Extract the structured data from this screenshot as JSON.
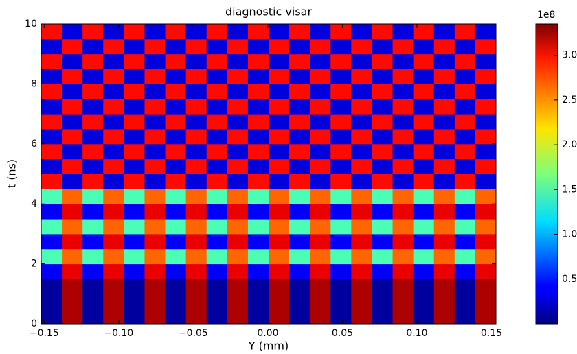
{
  "chart_data": {
    "type": "heatmap",
    "title": "diagnostic visar",
    "x_label": "Y (mm)",
    "y_label": "t (ns)",
    "xlim": [
      -0.152,
      0.153
    ],
    "ylim": [
      0,
      10
    ],
    "xticks": [
      {
        "value": -0.15,
        "label": "−0.15"
      },
      {
        "value": -0.1,
        "label": "−0.10"
      },
      {
        "value": -0.05,
        "label": "−0.05"
      },
      {
        "value": 0,
        "label": "0.00"
      },
      0.05,
      {
        "value": 0.1,
        "label": "0.10"
      },
      0.15
    ],
    "yticks": [
      0,
      2,
      4,
      6,
      8,
      10
    ],
    "colorbar_offset": "1e8",
    "clim": [
      0,
      3.35
    ],
    "colorbar_ticks": [
      0.5,
      {
        "value": 1,
        "label": "1.0"
      },
      1.5,
      {
        "value": 2,
        "label": "2.0"
      },
      2.5,
      {
        "value": 3,
        "label": "3.0"
      }
    ],
    "colormap": "jet",
    "z": [
      [
        0.1,
        3.2,
        0.1,
        3.2,
        0.1,
        3.2,
        0.1,
        3.2,
        0.1,
        3.2,
        0.1,
        3.2,
        0.1,
        3.2,
        0.1,
        3.2,
        0.1,
        3.2,
        0.1,
        3.2,
        0.1,
        3.2
      ],
      [
        0.1,
        3.2,
        0.1,
        3.2,
        0.1,
        3.2,
        0.1,
        3.2,
        0.1,
        3.2,
        0.1,
        3.2,
        0.1,
        3.2,
        0.1,
        3.2,
        0.1,
        3.2,
        0.1,
        3.2,
        0.1,
        3.2
      ],
      [
        0.1,
        3.2,
        0.1,
        3.2,
        0.1,
        3.2,
        0.1,
        3.2,
        0.1,
        3.2,
        0.1,
        3.2,
        0.1,
        3.2,
        0.1,
        3.2,
        0.1,
        3.2,
        0.1,
        3.2,
        0.1,
        3.2
      ],
      [
        0.4,
        3.0,
        0.4,
        3.0,
        0.4,
        3.0,
        0.4,
        3.0,
        0.4,
        3.0,
        0.4,
        3.0,
        0.4,
        3.0,
        0.4,
        3.0,
        0.4,
        3.0,
        0.4,
        3.0,
        0.4,
        3.0
      ],
      [
        1.5,
        2.6,
        1.5,
        2.6,
        1.5,
        2.6,
        1.5,
        2.6,
        1.5,
        2.6,
        1.5,
        2.6,
        1.5,
        2.6,
        1.5,
        2.6,
        1.5,
        2.6,
        1.5,
        2.6,
        1.5,
        2.6
      ],
      [
        0.4,
        3.0,
        0.4,
        3.0,
        0.4,
        3.0,
        0.4,
        3.0,
        0.4,
        3.0,
        0.4,
        3.0,
        0.4,
        3.0,
        0.4,
        3.0,
        0.4,
        3.0,
        0.4,
        3.0,
        0.4,
        3.0
      ],
      [
        1.5,
        2.6,
        1.5,
        2.6,
        1.5,
        2.6,
        1.5,
        2.6,
        1.5,
        2.6,
        1.5,
        2.6,
        1.5,
        2.6,
        1.5,
        2.6,
        1.5,
        2.6,
        1.5,
        2.6,
        1.5,
        2.6
      ],
      [
        0.4,
        3.0,
        0.4,
        3.0,
        0.4,
        3.0,
        0.4,
        3.0,
        0.4,
        3.0,
        0.4,
        3.0,
        0.4,
        3.0,
        0.4,
        3.0,
        0.4,
        3.0,
        0.4,
        3.0,
        0.4,
        3.0
      ],
      [
        1.5,
        2.6,
        1.5,
        2.6,
        1.5,
        2.6,
        1.5,
        2.6,
        1.5,
        2.6,
        1.5,
        2.6,
        1.5,
        2.6,
        1.5,
        2.6,
        1.5,
        2.6,
        1.5,
        2.6,
        1.5,
        2.6
      ],
      [
        2.9,
        0.3,
        2.9,
        0.3,
        2.9,
        0.3,
        2.9,
        0.3,
        2.9,
        0.3,
        2.9,
        0.3,
        2.9,
        0.3,
        2.9,
        0.3,
        2.9,
        0.3,
        2.9,
        0.3,
        2.9,
        0.3
      ],
      [
        0.3,
        2.9,
        0.3,
        2.9,
        0.3,
        2.9,
        0.3,
        2.9,
        0.3,
        2.9,
        0.3,
        2.9,
        0.3,
        2.9,
        0.3,
        2.9,
        0.3,
        2.9,
        0.3,
        2.9,
        0.3,
        2.9
      ],
      [
        2.9,
        0.3,
        2.9,
        0.3,
        2.9,
        0.3,
        2.9,
        0.3,
        2.9,
        0.3,
        2.9,
        0.3,
        2.9,
        0.3,
        2.9,
        0.3,
        2.9,
        0.3,
        2.9,
        0.3,
        2.9,
        0.3
      ],
      [
        0.3,
        2.9,
        0.3,
        2.9,
        0.3,
        2.9,
        0.3,
        2.9,
        0.3,
        2.9,
        0.3,
        2.9,
        0.3,
        2.9,
        0.3,
        2.9,
        0.3,
        2.9,
        0.3,
        2.9,
        0.3,
        2.9
      ],
      [
        2.9,
        0.3,
        2.9,
        0.3,
        2.9,
        0.3,
        2.9,
        0.3,
        2.9,
        0.3,
        2.9,
        0.3,
        2.9,
        0.3,
        2.9,
        0.3,
        2.9,
        0.3,
        2.9,
        0.3,
        2.9,
        0.3
      ],
      [
        0.3,
        2.9,
        0.3,
        2.9,
        0.3,
        2.9,
        0.3,
        2.9,
        0.3,
        2.9,
        0.3,
        2.9,
        0.3,
        2.9,
        0.3,
        2.9,
        0.3,
        2.9,
        0.3,
        2.9,
        0.3,
        2.9
      ],
      [
        2.9,
        0.3,
        2.9,
        0.3,
        2.9,
        0.3,
        2.9,
        0.3,
        2.9,
        0.3,
        2.9,
        0.3,
        2.9,
        0.3,
        2.9,
        0.3,
        2.9,
        0.3,
        2.9,
        0.3,
        2.9,
        0.3
      ],
      [
        0.3,
        2.9,
        0.3,
        2.9,
        0.3,
        2.9,
        0.3,
        2.9,
        0.3,
        2.9,
        0.3,
        2.9,
        0.3,
        2.9,
        0.3,
        2.9,
        0.3,
        2.9,
        0.3,
        2.9,
        0.3,
        2.9
      ],
      [
        2.9,
        0.3,
        2.9,
        0.3,
        2.9,
        0.3,
        2.9,
        0.3,
        2.9,
        0.3,
        2.9,
        0.3,
        2.9,
        0.3,
        2.9,
        0.3,
        2.9,
        0.3,
        2.9,
        0.3,
        2.9,
        0.3
      ],
      [
        0.3,
        2.9,
        0.3,
        2.9,
        0.3,
        2.9,
        0.3,
        2.9,
        0.3,
        2.9,
        0.3,
        2.9,
        0.3,
        2.9,
        0.3,
        2.9,
        0.3,
        2.9,
        0.3,
        2.9,
        0.3,
        2.9
      ],
      [
        2.9,
        0.3,
        2.9,
        0.3,
        2.9,
        0.3,
        2.9,
        0.3,
        2.9,
        0.3,
        2.9,
        0.3,
        2.9,
        0.3,
        2.9,
        0.3,
        2.9,
        0.3,
        2.9,
        0.3,
        2.9,
        0.3
      ]
    ]
  }
}
